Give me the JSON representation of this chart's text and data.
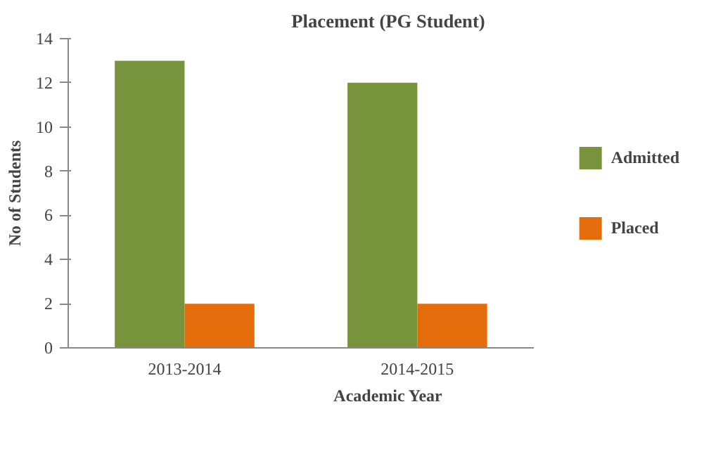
{
  "chart_data": {
    "type": "bar",
    "title": "Placement (PG Student)",
    "xlabel": "Academic Year",
    "ylabel": "No of Students",
    "categories": [
      "2013-2014",
      "2014-2015"
    ],
    "series": [
      {
        "name": "Admitted",
        "color": "#77933c",
        "values": [
          13,
          12
        ]
      },
      {
        "name": "Placed",
        "color": "#e46c0a",
        "values": [
          2,
          2
        ]
      }
    ],
    "ylim": [
      0,
      14
    ],
    "yticks": [
      0,
      2,
      4,
      6,
      8,
      10,
      12,
      14
    ],
    "grid": false,
    "legend": "right"
  }
}
